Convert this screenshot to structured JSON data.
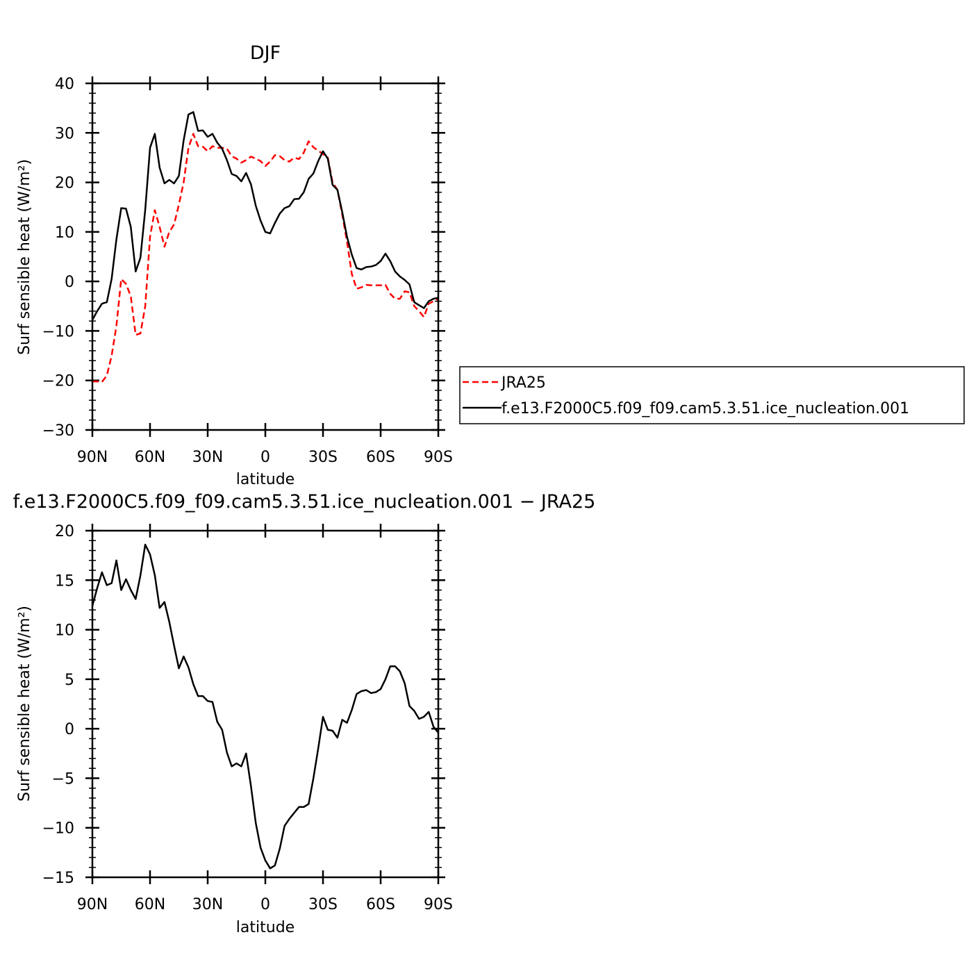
{
  "chart_data": [
    {
      "type": "line",
      "title": "DJF",
      "xlabel": "latitude",
      "ylabel": "Surf sensible heat (W/m²)",
      "xlim": [
        -90,
        90
      ],
      "ylim": [
        -30,
        40
      ],
      "xticks": [
        -90,
        -60,
        -30,
        0,
        30,
        60,
        90
      ],
      "xtick_labels": [
        "90N",
        "60N",
        "30N",
        "0",
        "30S",
        "60S",
        "90S"
      ],
      "yticks": [
        -30,
        -20,
        -10,
        0,
        10,
        20,
        30,
        40
      ],
      "ytick_labels": [
        "−30",
        "−20",
        "−10",
        "0",
        "10",
        "20",
        "30",
        "40"
      ],
      "legend_position": "right",
      "series": [
        {
          "name": "JRA25",
          "color": "#ff0000",
          "style": "dashed",
          "x": [
            -90,
            -87.5,
            -85,
            -82.5,
            -80,
            -77.5,
            -75,
            -72.5,
            -70,
            -67.5,
            -65,
            -62.5,
            -60,
            -57.5,
            -55,
            -52.5,
            -50,
            -47.5,
            -45,
            -42.5,
            -40,
            -37.5,
            -35,
            -32.5,
            -30,
            -27.5,
            -25,
            -22.5,
            -20,
            -17.5,
            -15,
            -12.5,
            -10,
            -7.5,
            -5,
            -2.5,
            0,
            2.5,
            5,
            7.5,
            10,
            12.5,
            15,
            17.5,
            20,
            22.5,
            25,
            27.5,
            30,
            32.5,
            35,
            37.5,
            40,
            42.5,
            45,
            47.5,
            50,
            52.5,
            55,
            57.5,
            60,
            62.5,
            65,
            67.5,
            70,
            72.5,
            75,
            77.5,
            80,
            82.5,
            85,
            87.5,
            90
          ],
          "y": [
            -20.2,
            -20.2,
            -20.3,
            -19,
            -15,
            -9,
            0.5,
            -0.5,
            -3,
            -10.8,
            -10.5,
            -5,
            9,
            14.4,
            11,
            7,
            10,
            11.5,
            15.5,
            20,
            27,
            29.8,
            27.3,
            27.2,
            26.3,
            27.3,
            27,
            27,
            26.8,
            25.3,
            24.8,
            24,
            24.5,
            25.2,
            24.8,
            24.3,
            23.3,
            24.2,
            25.5,
            25.3,
            24.5,
            24.2,
            25,
            24.7,
            26,
            28.3,
            27.1,
            26.4,
            25.7,
            25,
            20,
            18.5,
            13.5,
            8,
            1.5,
            -1.5,
            -1.2,
            -0.7,
            -0.8,
            -0.8,
            -0.8,
            -0.7,
            -2.5,
            -3.5,
            -3.5,
            -2,
            -2.2,
            -5,
            -6,
            -7.2,
            -4.5,
            -4,
            -3.5
          ]
        },
        {
          "name": "f.e13.F2000C5.f09_f09.cam5.3.51.ice_nucleation.001",
          "color": "#000000",
          "style": "solid",
          "x": [
            -90,
            -87.5,
            -85,
            -82.5,
            -80,
            -77.5,
            -75,
            -72.5,
            -70,
            -67.5,
            -65,
            -62.5,
            -60,
            -57.5,
            -55,
            -52.5,
            -50,
            -47.5,
            -45,
            -42.5,
            -40,
            -37.5,
            -35,
            -32.5,
            -30,
            -27.5,
            -25,
            -22.5,
            -20,
            -17.5,
            -15,
            -12.5,
            -10,
            -7.5,
            -5,
            -2.5,
            0,
            2.5,
            5,
            7.5,
            10,
            12.5,
            15,
            17.5,
            20,
            22.5,
            25,
            27.5,
            30,
            32.5,
            35,
            37.5,
            40,
            42.5,
            45,
            47.5,
            50,
            52.5,
            55,
            57.5,
            60,
            62.5,
            65,
            67.5,
            70,
            72.5,
            75,
            77.5,
            80,
            82.5,
            85,
            87.5,
            90
          ],
          "y": [
            -7.8,
            -6,
            -4.5,
            -4.2,
            0.5,
            8.5,
            14.8,
            14.7,
            11,
            2,
            4.8,
            14.5,
            27,
            29.8,
            23,
            19.8,
            20.5,
            19.8,
            21.3,
            28.5,
            33.7,
            34.2,
            30.4,
            30.5,
            29.2,
            29.8,
            28,
            26.8,
            24.5,
            21.7,
            21.3,
            20.2,
            21.9,
            19.6,
            15.3,
            12.3,
            10,
            9.7,
            11.8,
            13.7,
            14.8,
            15.2,
            16.6,
            16.7,
            18,
            20.7,
            21.8,
            24.3,
            26.3,
            24.8,
            19.5,
            18.5,
            14,
            9,
            5.4,
            2.7,
            2.4,
            2.9,
            3,
            3.3,
            4.1,
            5.6,
            4.1,
            2,
            1,
            0.3,
            -0.6,
            -4.2,
            -4.8,
            -5.4,
            -4,
            -3.5,
            -3.3
          ]
        }
      ]
    },
    {
      "type": "line",
      "title": "f.e13.F2000C5.f09_f09.cam5.3.51.ice_nucleation.001 − JRA25",
      "xlabel": "latitude",
      "ylabel": "Surf sensible heat (W/m²)",
      "xlim": [
        -90,
        90
      ],
      "ylim": [
        -15,
        20
      ],
      "xticks": [
        -90,
        -60,
        -30,
        0,
        30,
        60,
        90
      ],
      "xtick_labels": [
        "90N",
        "60N",
        "30N",
        "0",
        "30S",
        "60S",
        "90S"
      ],
      "yticks": [
        -15,
        -10,
        -5,
        0,
        5,
        10,
        15,
        20
      ],
      "ytick_labels": [
        "−15",
        "−10",
        "−5",
        "0",
        "5",
        "10",
        "15",
        "20"
      ],
      "series": [
        {
          "color": "#000000",
          "style": "solid",
          "x": [
            -90,
            -87.5,
            -85,
            -82.5,
            -80,
            -77.5,
            -75,
            -72.5,
            -70,
            -67.5,
            -65,
            -62.5,
            -60,
            -57.5,
            -55,
            -52.5,
            -50,
            -47.5,
            -45,
            -42.5,
            -40,
            -37.5,
            -35,
            -32.5,
            -30,
            -27.5,
            -25,
            -22.5,
            -20,
            -17.5,
            -15,
            -12.5,
            -10,
            -7.5,
            -5,
            -2.5,
            0,
            2.5,
            5,
            7.5,
            10,
            12.5,
            15,
            17.5,
            20,
            22.5,
            25,
            27.5,
            30,
            32.5,
            35,
            37.5,
            40,
            42.5,
            45,
            47.5,
            50,
            52.5,
            55,
            57.5,
            60,
            62.5,
            65,
            67.5,
            70,
            72.5,
            75,
            77.5,
            80,
            82.5,
            85,
            87.5,
            90
          ],
          "y": [
            12.4,
            14.2,
            15.8,
            14.5,
            14.7,
            17,
            14,
            15.1,
            14,
            13.1,
            15.5,
            18.6,
            17.6,
            15.5,
            12.2,
            12.8,
            10.8,
            8.4,
            6.1,
            7.3,
            6.2,
            4.5,
            3.3,
            3.3,
            2.8,
            2.7,
            0.7,
            -0.1,
            -2.4,
            -3.8,
            -3.5,
            -3.8,
            -2.5,
            -5.8,
            -9.5,
            -12,
            -13.3,
            -14.1,
            -13.8,
            -12.1,
            -9.8,
            -9.1,
            -8.5,
            -7.9,
            -7.9,
            -7.6,
            -5,
            -2,
            1.2,
            -0.1,
            -0.2,
            -0.9,
            0.9,
            0.6,
            1.9,
            3.5,
            3.8,
            3.9,
            3.6,
            3.7,
            4,
            5,
            6.3,
            6.3,
            5.8,
            4.6,
            2.3,
            1.8,
            1,
            1.2,
            1.7,
            0.2,
            -0.4
          ]
        }
      ]
    }
  ]
}
